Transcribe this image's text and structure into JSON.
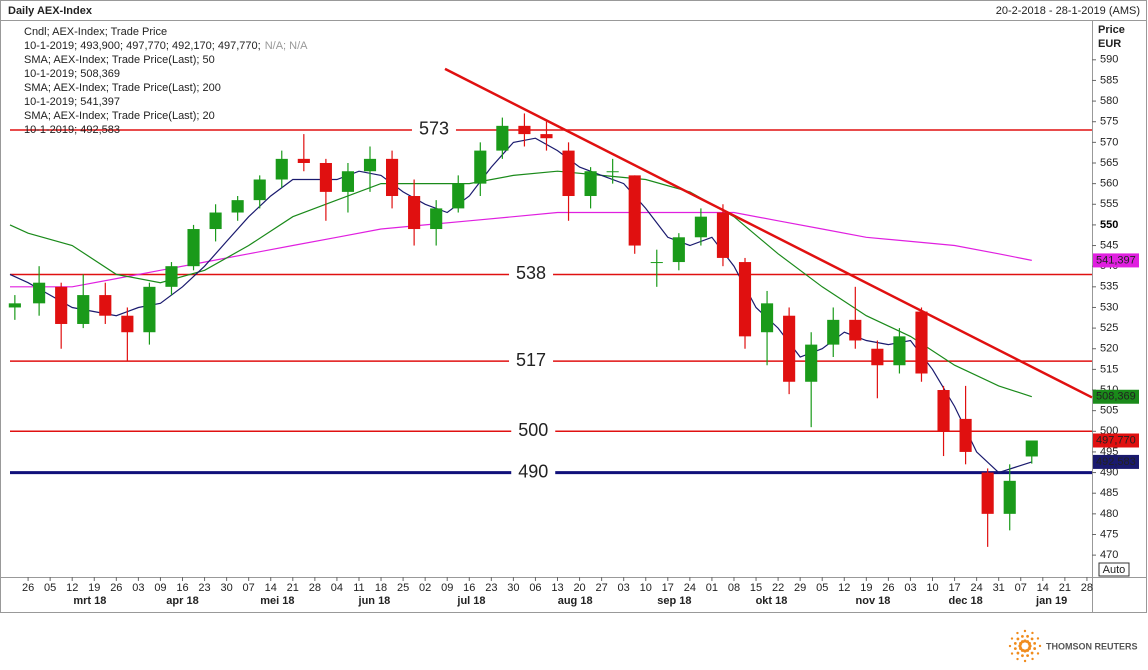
{
  "chart_data": {
    "type": "candlestick",
    "title": "Daily AEX-Index",
    "date_range": "20-2-2018 - 28-1-2019 (AMS)",
    "price_label": "Price",
    "currency": "EUR",
    "button": "Auto",
    "brand": "THOMSON REUTERS",
    "xlim": [
      -0.82,
      48.23
    ],
    "ylim": [
      464.7,
      599.4
    ],
    "yticks": [
      470,
      475,
      480,
      485,
      490,
      495,
      500,
      505,
      510,
      515,
      520,
      525,
      530,
      535,
      540,
      545,
      550,
      555,
      560,
      565,
      570,
      575,
      580,
      585,
      590
    ],
    "major_ytick": 550,
    "xticks": [
      {
        "value": 0,
        "label": "26"
      },
      {
        "value": 1,
        "label": "05"
      },
      {
        "value": 2,
        "label": "12"
      },
      {
        "value": 3,
        "label": "19"
      },
      {
        "value": 4,
        "label": "26"
      },
      {
        "value": 5,
        "label": "03"
      },
      {
        "value": 6,
        "label": "09"
      },
      {
        "value": 7,
        "label": "16"
      },
      {
        "value": 8,
        "label": "23"
      },
      {
        "value": 9,
        "label": "30"
      },
      {
        "value": 10,
        "label": "07"
      },
      {
        "value": 11,
        "label": "14"
      },
      {
        "value": 12,
        "label": "21"
      },
      {
        "value": 13,
        "label": "28"
      },
      {
        "value": 14,
        "label": "04"
      },
      {
        "value": 15,
        "label": "11"
      },
      {
        "value": 16,
        "label": "18"
      },
      {
        "value": 17,
        "label": "25"
      },
      {
        "value": 18,
        "label": "02"
      },
      {
        "value": 19,
        "label": "09"
      },
      {
        "value": 20,
        "label": "16"
      },
      {
        "value": 21,
        "label": "23"
      },
      {
        "value": 22,
        "label": "30"
      },
      {
        "value": 23,
        "label": "06"
      },
      {
        "value": 24,
        "label": "13"
      },
      {
        "value": 25,
        "label": "20"
      },
      {
        "value": 26,
        "label": "27"
      },
      {
        "value": 27,
        "label": "03"
      },
      {
        "value": 28,
        "label": "10"
      },
      {
        "value": 29,
        "label": "17"
      },
      {
        "value": 30,
        "label": "24"
      },
      {
        "value": 31,
        "label": "01"
      },
      {
        "value": 32,
        "label": "08"
      },
      {
        "value": 33,
        "label": "15"
      },
      {
        "value": 34,
        "label": "22"
      },
      {
        "value": 35,
        "label": "29"
      },
      {
        "value": 36,
        "label": "05"
      },
      {
        "value": 37,
        "label": "12"
      },
      {
        "value": 38,
        "label": "19"
      },
      {
        "value": 39,
        "label": "26"
      },
      {
        "value": 40,
        "label": "03"
      },
      {
        "value": 41,
        "label": "10"
      },
      {
        "value": 42,
        "label": "17"
      },
      {
        "value": 43,
        "label": "24"
      },
      {
        "value": 44,
        "label": "31"
      },
      {
        "value": 45,
        "label": "07"
      },
      {
        "value": 46,
        "label": "14"
      },
      {
        "value": 47,
        "label": "21"
      },
      {
        "value": 48,
        "label": "28"
      }
    ],
    "month_labels": [
      {
        "value": 2.8,
        "label": "mrt 18"
      },
      {
        "value": 7.0,
        "label": "apr 18"
      },
      {
        "value": 11.3,
        "label": "mei 18"
      },
      {
        "value": 15.7,
        "label": "jun 18"
      },
      {
        "value": 20.1,
        "label": "jul 18"
      },
      {
        "value": 24.8,
        "label": "aug 18"
      },
      {
        "value": 29.3,
        "label": "sep 18"
      },
      {
        "value": 33.7,
        "label": "okt 18"
      },
      {
        "value": 38.3,
        "label": "nov 18"
      },
      {
        "value": 42.5,
        "label": "dec 18"
      },
      {
        "value": 46.4,
        "label": "jan 19"
      }
    ],
    "up_color": "#1a9a1a",
    "down_color": "#e01010",
    "x": [
      -0.6,
      0.5,
      1.5,
      2.5,
      3.5,
      4.5,
      5.5,
      6.5,
      7.5,
      8.5,
      9.5,
      10.5,
      11.5,
      12.5,
      13.5,
      14.5,
      15.5,
      16.5,
      17.5,
      18.5,
      19.5,
      20.5,
      21.5,
      22.5,
      23.5,
      24.5,
      25.5,
      26.5,
      27.5,
      28.5,
      29.5,
      30.5,
      31.5,
      32.5,
      33.5,
      34.5,
      35.5,
      36.5,
      37.5,
      38.5,
      39.5,
      40.5,
      41.5,
      42.5,
      43.5,
      44.5,
      45.5
    ],
    "open": [
      530,
      531,
      535,
      526,
      533,
      528,
      524,
      535,
      540,
      549,
      553,
      556,
      561,
      566,
      565,
      558,
      563,
      566,
      557,
      549,
      554,
      560,
      568,
      574,
      572,
      568,
      557,
      563,
      562,
      541,
      541,
      547,
      553,
      541,
      524,
      528,
      512,
      521,
      527,
      520,
      516,
      529,
      510,
      503,
      490,
      480,
      493.9
    ],
    "high": [
      533,
      540,
      536,
      538,
      536,
      530,
      536,
      541,
      550,
      555,
      557,
      562,
      568,
      572,
      566,
      565,
      569,
      568,
      561,
      556,
      562,
      570,
      576,
      577,
      575,
      570,
      564,
      566,
      562,
      544,
      548,
      554,
      555,
      542,
      534,
      530,
      524,
      530,
      535,
      522,
      525,
      530,
      511,
      511,
      491,
      492,
      497.77
    ],
    "low": [
      527,
      528,
      520,
      525,
      526,
      517,
      521,
      533,
      539,
      546,
      551,
      554,
      559,
      563,
      551,
      553,
      558,
      554,
      545,
      545,
      553,
      557,
      566,
      569,
      568,
      551,
      554,
      560,
      543,
      535,
      539,
      545,
      540,
      520,
      516,
      509,
      501,
      518,
      520,
      508,
      514,
      512,
      494,
      492,
      472,
      476,
      492.17
    ],
    "close": [
      531,
      536,
      526,
      533,
      528,
      524,
      535,
      540,
      549,
      553,
      556,
      561,
      566,
      565,
      558,
      563,
      566,
      557,
      549,
      554,
      560,
      568,
      574,
      572,
      571,
      557,
      563,
      563,
      545,
      541,
      547,
      552,
      542,
      523,
      531,
      512,
      521,
      527,
      522,
      516,
      523,
      514,
      500,
      495,
      480,
      488,
      497.77
    ],
    "close_label": "497,770",
    "series": [
      {
        "name": "SMA 200",
        "color": "#e020e0",
        "last_label": "541,397",
        "x": [
          -0.82,
          2,
          4,
          6,
          8,
          10,
          12,
          14,
          16,
          18,
          20,
          22,
          24,
          26,
          28,
          30,
          32,
          34,
          36,
          38,
          40,
          42,
          44,
          45.5
        ],
        "values": [
          535,
          535,
          537,
          539,
          541,
          543,
          545,
          547,
          549,
          550,
          551,
          552,
          553,
          553,
          553,
          553,
          553,
          551,
          549,
          547,
          546,
          545,
          543,
          541.397
        ]
      },
      {
        "name": "SMA 50",
        "color": "#1a8a1a",
        "last_label": "508,369",
        "x": [
          -0.82,
          0,
          2,
          4,
          6,
          8,
          10,
          12,
          14,
          16,
          18,
          20,
          22,
          24,
          26,
          28,
          30,
          32,
          34,
          36,
          38,
          40,
          42,
          44,
          45.5
        ],
        "values": [
          550,
          548,
          545,
          538,
          536,
          539,
          545,
          552,
          556,
          560,
          560,
          560,
          562,
          563,
          562,
          561,
          558,
          552,
          543,
          535,
          528,
          523,
          516,
          511,
          508.369
        ]
      },
      {
        "name": "SMA 20",
        "color": "#1a1a6e",
        "last_label": "492,583",
        "x": [
          -0.82,
          0,
          1,
          2,
          3,
          4,
          5,
          6,
          7,
          8,
          9,
          10,
          11,
          12,
          13,
          14,
          15,
          16,
          17,
          18,
          19,
          20,
          21,
          22,
          23,
          24,
          25,
          26,
          27,
          28,
          29,
          30,
          31,
          32,
          33,
          34,
          35,
          36,
          37,
          38,
          39,
          40,
          41,
          42,
          43,
          44,
          45.5
        ],
        "values": [
          538,
          536,
          533,
          530,
          529,
          528,
          530,
          531,
          535,
          540,
          546,
          552,
          557,
          561,
          561,
          561,
          563,
          562,
          558,
          555,
          553,
          557,
          564,
          570,
          571,
          568,
          564,
          562,
          560,
          554,
          547,
          545,
          547,
          540,
          530,
          525,
          518,
          520,
          524,
          522,
          521,
          522,
          515,
          506,
          495,
          490,
          492.583
        ]
      }
    ],
    "hlines": [
      {
        "value": 573,
        "color": "#e01010",
        "label_x": 18.4
      },
      {
        "value": 538,
        "color": "#e01010",
        "label_x": 22.8
      },
      {
        "value": 517,
        "color": "#e01010",
        "label_x": 22.8
      },
      {
        "value": 500,
        "color": "#e01010",
        "label_x": 22.9
      },
      {
        "value": 490,
        "color": "#10107a",
        "label_x": 22.9
      }
    ],
    "trendline": {
      "x": [
        18.9,
        48.23
      ],
      "y": [
        587.8,
        508.2
      ],
      "color": "#e01010"
    },
    "legend": [
      {
        "text": "Cndl; AEX-Index; Trade Price",
        "color": "#e01010"
      },
      {
        "text": "10-1-2019; 493,900; 497,770; 492,170; 497,770;",
        "extra": "N/A; N/A",
        "color": "#e01010"
      },
      {
        "text": "SMA; AEX-Index; Trade Price(Last); 50",
        "color": "#1a8a1a"
      },
      {
        "text": "10-1-2019; 508,369",
        "color": "#1a8a1a"
      },
      {
        "text": "SMA; AEX-Index; Trade Price(Last); 200",
        "color": "#e020e0"
      },
      {
        "text": "10-1-2019; 541,397",
        "color": "#e020e0"
      },
      {
        "text": "SMA; AEX-Index; Trade Price(Last); 20",
        "color": "#1a1a6e"
      },
      {
        "text": "10-1-2019; 492,583",
        "color": "#1a1a6e"
      }
    ]
  }
}
